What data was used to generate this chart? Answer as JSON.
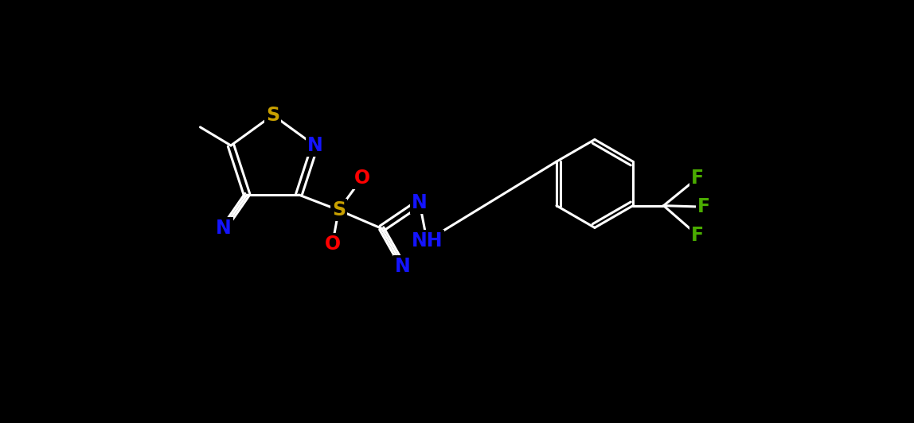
{
  "background_color": "#000000",
  "bond_color": "#ffffff",
  "atom_colors": {
    "N": "#1414ff",
    "S": "#c8a000",
    "O": "#ff0000",
    "F": "#4aab00"
  },
  "fig_width": 11.48,
  "fig_height": 5.32,
  "dpi": 100
}
